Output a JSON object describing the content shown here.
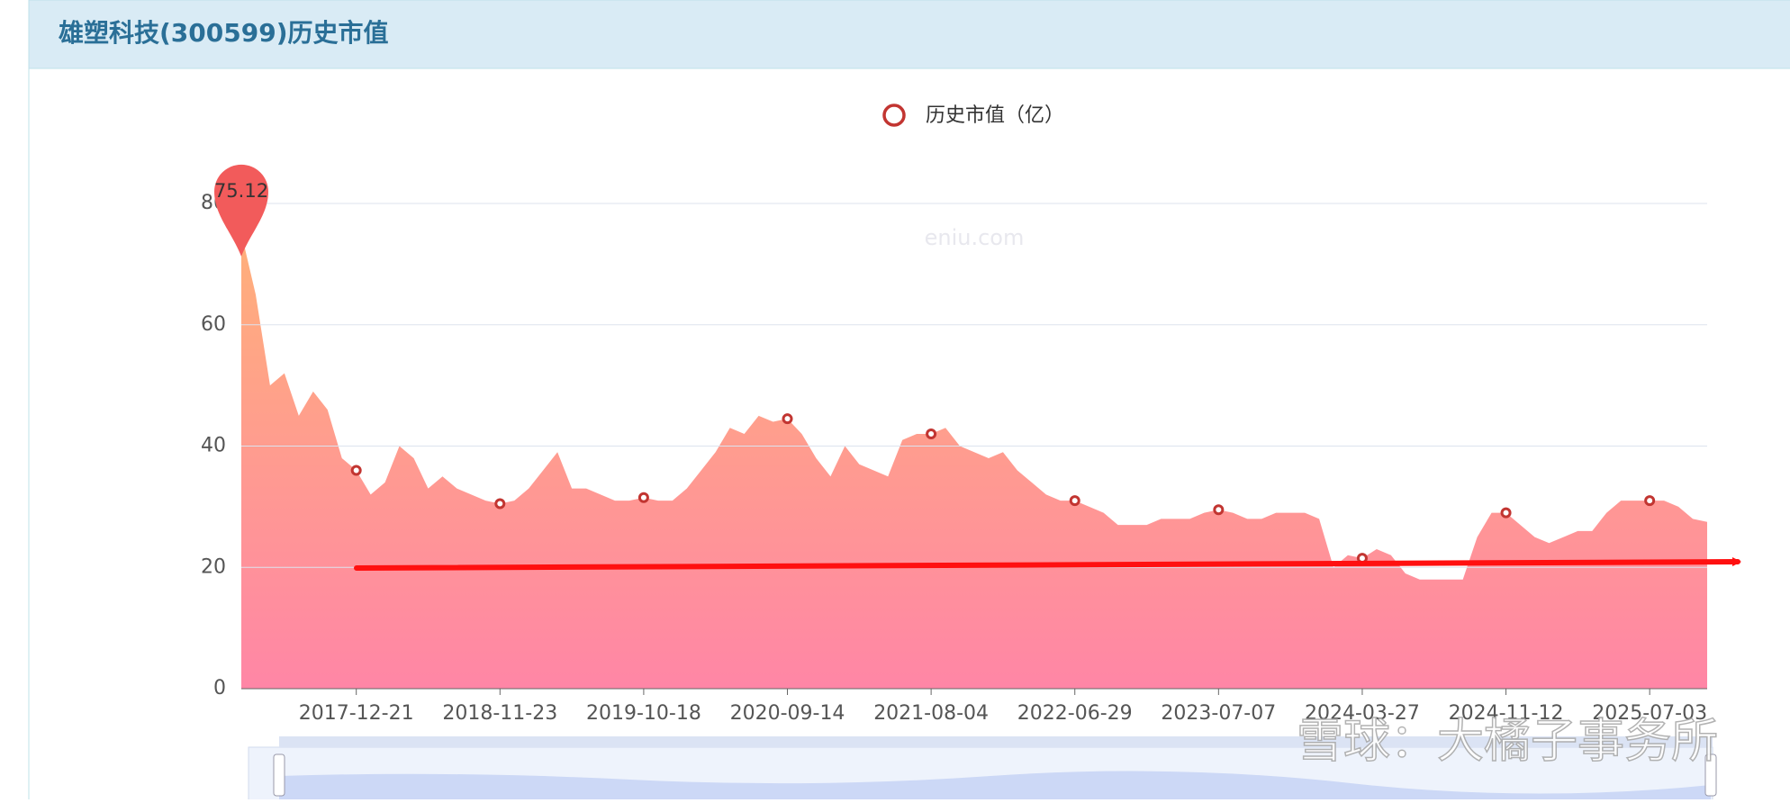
{
  "chart_data": {
    "type": "area",
    "title": "雄塑科技(300599)历史市值",
    "watermark": "eniu.com",
    "caption": "雪球：大橘子事务所",
    "categories": [
      null,
      null,
      null,
      null,
      null,
      null,
      null,
      null,
      "2017-12-21",
      null,
      null,
      null,
      null,
      null,
      null,
      null,
      null,
      null,
      "2018-11-23",
      null,
      null,
      null,
      null,
      null,
      null,
      null,
      null,
      null,
      "2019-10-18",
      null,
      null,
      null,
      null,
      null,
      null,
      null,
      null,
      null,
      "2020-09-14",
      null,
      null,
      null,
      null,
      null,
      null,
      null,
      null,
      null,
      "2021-08-04",
      null,
      null,
      null,
      null,
      null,
      null,
      null,
      null,
      null,
      "2022-06-29",
      null,
      null,
      null,
      null,
      null,
      null,
      null,
      null,
      null,
      "2023-07-07",
      null,
      null,
      null,
      null,
      null,
      null,
      null,
      null,
      null,
      "2024-03-27",
      null,
      null,
      null,
      null,
      null,
      null,
      null,
      null,
      null,
      "2024-11-12",
      null,
      null,
      null,
      null,
      null,
      null,
      null,
      null,
      null,
      "2025-07-03",
      null,
      null,
      null,
      null
    ],
    "series": [
      {
        "name": "历史市值（亿）",
        "color": "#c23531",
        "values": [
          75.12,
          65,
          50,
          52,
          45,
          49,
          46,
          38,
          36,
          32,
          34,
          40,
          38,
          33,
          35,
          33,
          32,
          31,
          30.5,
          31,
          33,
          36,
          39,
          33,
          33,
          32,
          31,
          31,
          31.5,
          31,
          31,
          33,
          36,
          39,
          43,
          42,
          45,
          44,
          44.5,
          42,
          38,
          35,
          40,
          37,
          36,
          35,
          41,
          42,
          42,
          43,
          40,
          39,
          38,
          39,
          36,
          34,
          32,
          31,
          31,
          30,
          29,
          27,
          27,
          27,
          28,
          28,
          28,
          29,
          29.5,
          29,
          28,
          28,
          29,
          29,
          29,
          28,
          20,
          22,
          21.5,
          23,
          22,
          19,
          18,
          18,
          18,
          18,
          25,
          29,
          29,
          27,
          25,
          24,
          25,
          26,
          26,
          29,
          31,
          31,
          31,
          31,
          30,
          28,
          27.5
        ]
      }
    ],
    "ylim": [
      0,
      80
    ],
    "yticks": [
      0,
      20,
      40,
      60,
      80
    ],
    "grid": true
  }
}
